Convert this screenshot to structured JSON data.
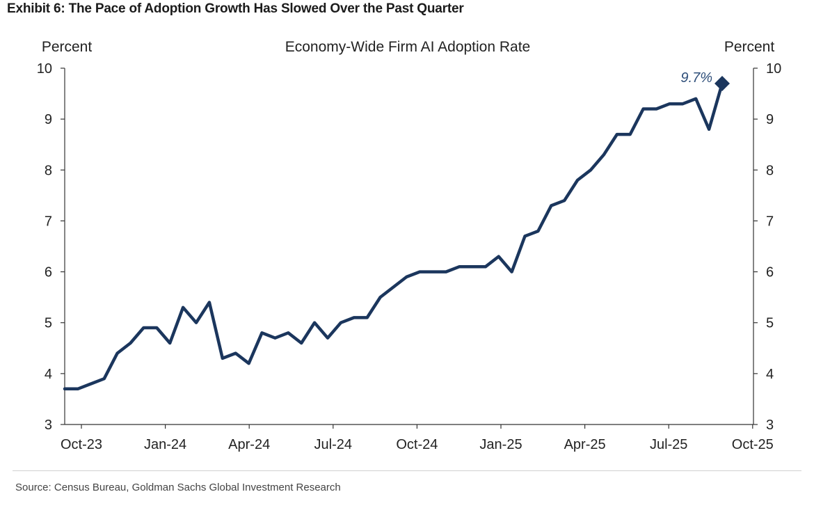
{
  "exhibit": {
    "title": "Exhibit 6: The Pace of Adoption Growth Has Slowed Over the Past Quarter"
  },
  "source_note": "Source: Census Bureau, Goldman Sachs Global Investment Research",
  "colors": {
    "line": "#1b365d",
    "axis": "#333333",
    "text": "#222222"
  },
  "chart_data": {
    "type": "line",
    "title": "Economy-Wide Firm AI Adoption Rate",
    "ylabel_left": "Percent",
    "ylabel_right": "Percent",
    "ylim": [
      3,
      10
    ],
    "yticks": [
      3,
      4,
      5,
      6,
      7,
      8,
      9,
      10
    ],
    "xticks": [
      "Oct-23",
      "Jan-24",
      "Apr-24",
      "Jul-24",
      "Oct-24",
      "Jan-25",
      "Apr-25",
      "Jul-25",
      "Oct-25"
    ],
    "grid": false,
    "annotation": {
      "text": "9.7%",
      "value": 9.7
    },
    "series": [
      {
        "values": [
          3.7,
          3.7,
          3.8,
          3.9,
          4.4,
          4.6,
          4.9,
          4.9,
          4.6,
          5.3,
          5.0,
          5.4,
          4.3,
          4.4,
          4.2,
          4.8,
          4.7,
          4.8,
          4.6,
          5.0,
          4.7,
          5.0,
          5.1,
          5.1,
          5.5,
          5.7,
          5.9,
          6.0,
          6.0,
          6.0,
          6.1,
          6.1,
          6.1,
          6.3,
          6.0,
          6.7,
          6.8,
          7.3,
          7.4,
          7.8,
          8.0,
          8.3,
          8.7,
          8.7,
          9.2,
          9.2,
          9.3,
          9.3,
          9.4,
          8.8,
          9.7
        ]
      }
    ]
  }
}
